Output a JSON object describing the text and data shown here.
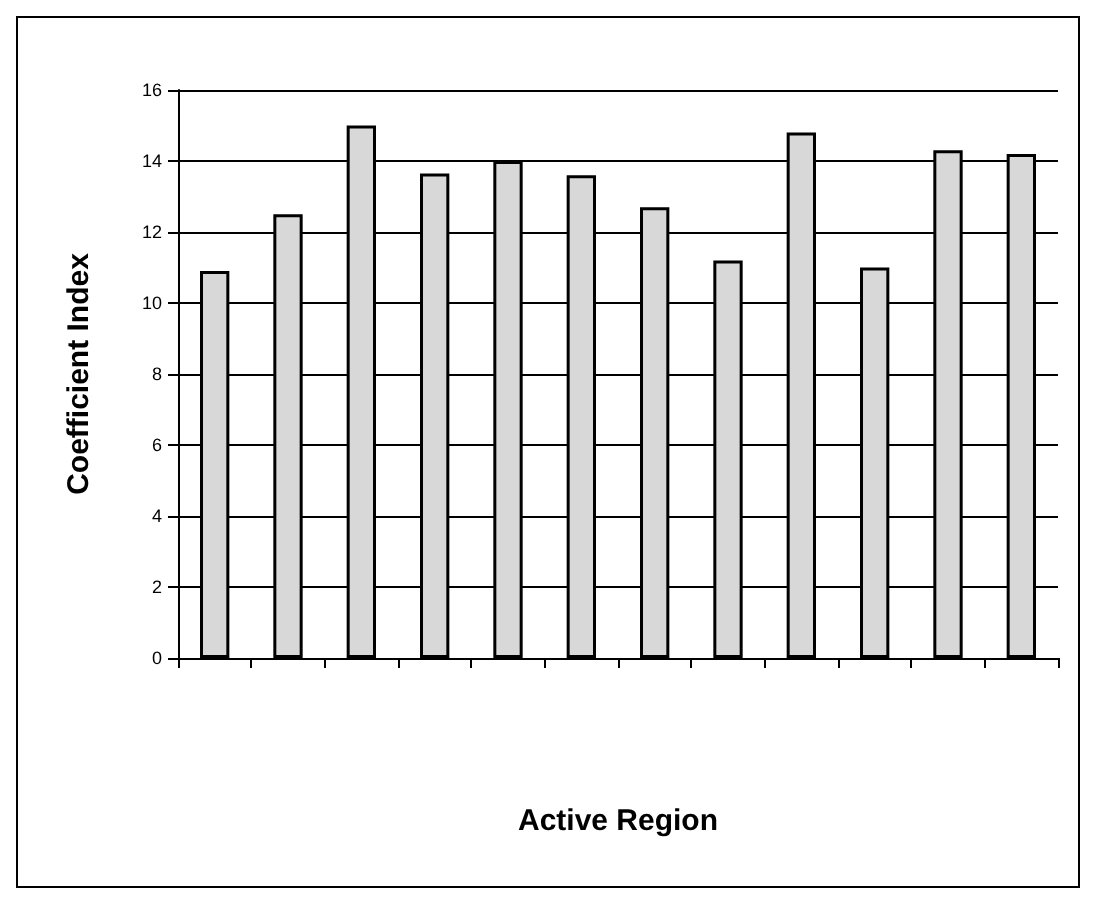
{
  "chart_data": {
    "type": "bar",
    "xlabel": "Active Region",
    "ylabel": "Coefficient Index",
    "categories": [
      null,
      null,
      null,
      null,
      null,
      null,
      null,
      null,
      null,
      null,
      null,
      null
    ],
    "values": [
      10.9,
      12.5,
      15.0,
      13.65,
      14.0,
      13.6,
      12.7,
      11.2,
      14.8,
      11.0,
      14.3,
      14.2
    ],
    "color": "#d8d8d8",
    "ylim": [
      0,
      16
    ],
    "yticks": [
      0,
      2,
      4,
      6,
      8,
      10,
      12,
      14,
      16
    ],
    "grid": "y"
  }
}
